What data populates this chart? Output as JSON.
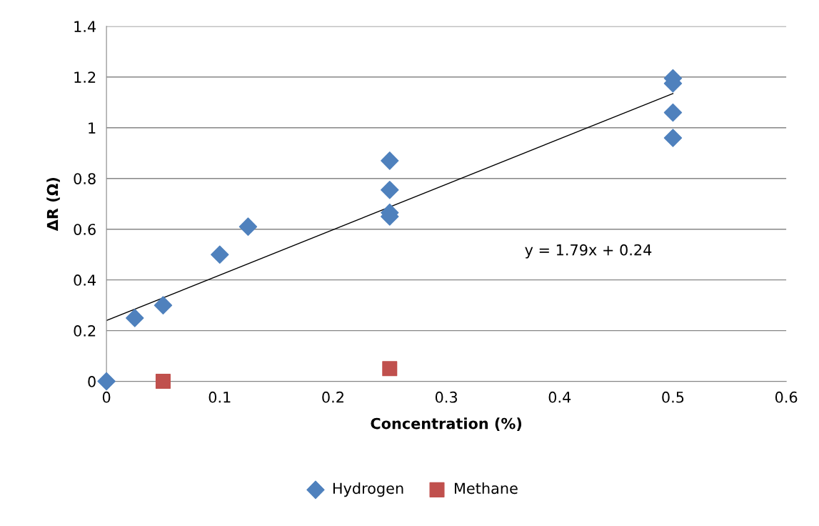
{
  "chart_data": {
    "type": "scatter",
    "xlabel": "Concentration (%)",
    "ylabel": "ΔR (Ω)",
    "xlim": [
      0,
      0.6
    ],
    "xticks": [
      0,
      0.1,
      0.2,
      0.3,
      0.4,
      0.5,
      0.6
    ],
    "ylim": [
      0,
      1.4
    ],
    "yticks": [
      0,
      0.2,
      0.4,
      0.6,
      0.8,
      1,
      1.2,
      1.4
    ],
    "grid": "y",
    "legend": "bottom",
    "annotations": [
      "y = 1.79x + 0.24"
    ],
    "series": [
      {
        "name": "Hydrogen",
        "color": "#4f81bd",
        "marker": "diamond",
        "x": [
          0,
          0.025,
          0.05,
          0.1,
          0.125,
          0.25,
          0.25,
          0.25,
          0.25,
          0.5,
          0.5,
          0.5,
          0.5
        ],
        "values": [
          0,
          0.25,
          0.3,
          0.5,
          0.61,
          0.87,
          0.755,
          0.665,
          0.65,
          1.195,
          1.175,
          1.06,
          0.96
        ]
      },
      {
        "name": "Methane",
        "color": "#c0504d",
        "marker": "square",
        "x": [
          0.05,
          0.25
        ],
        "values": [
          0,
          0.05
        ]
      },
      {
        "type": "line",
        "color": "#000000",
        "marker": "none",
        "x": [
          0,
          0.5
        ],
        "values": [
          0.24,
          1.135
        ]
      }
    ]
  }
}
